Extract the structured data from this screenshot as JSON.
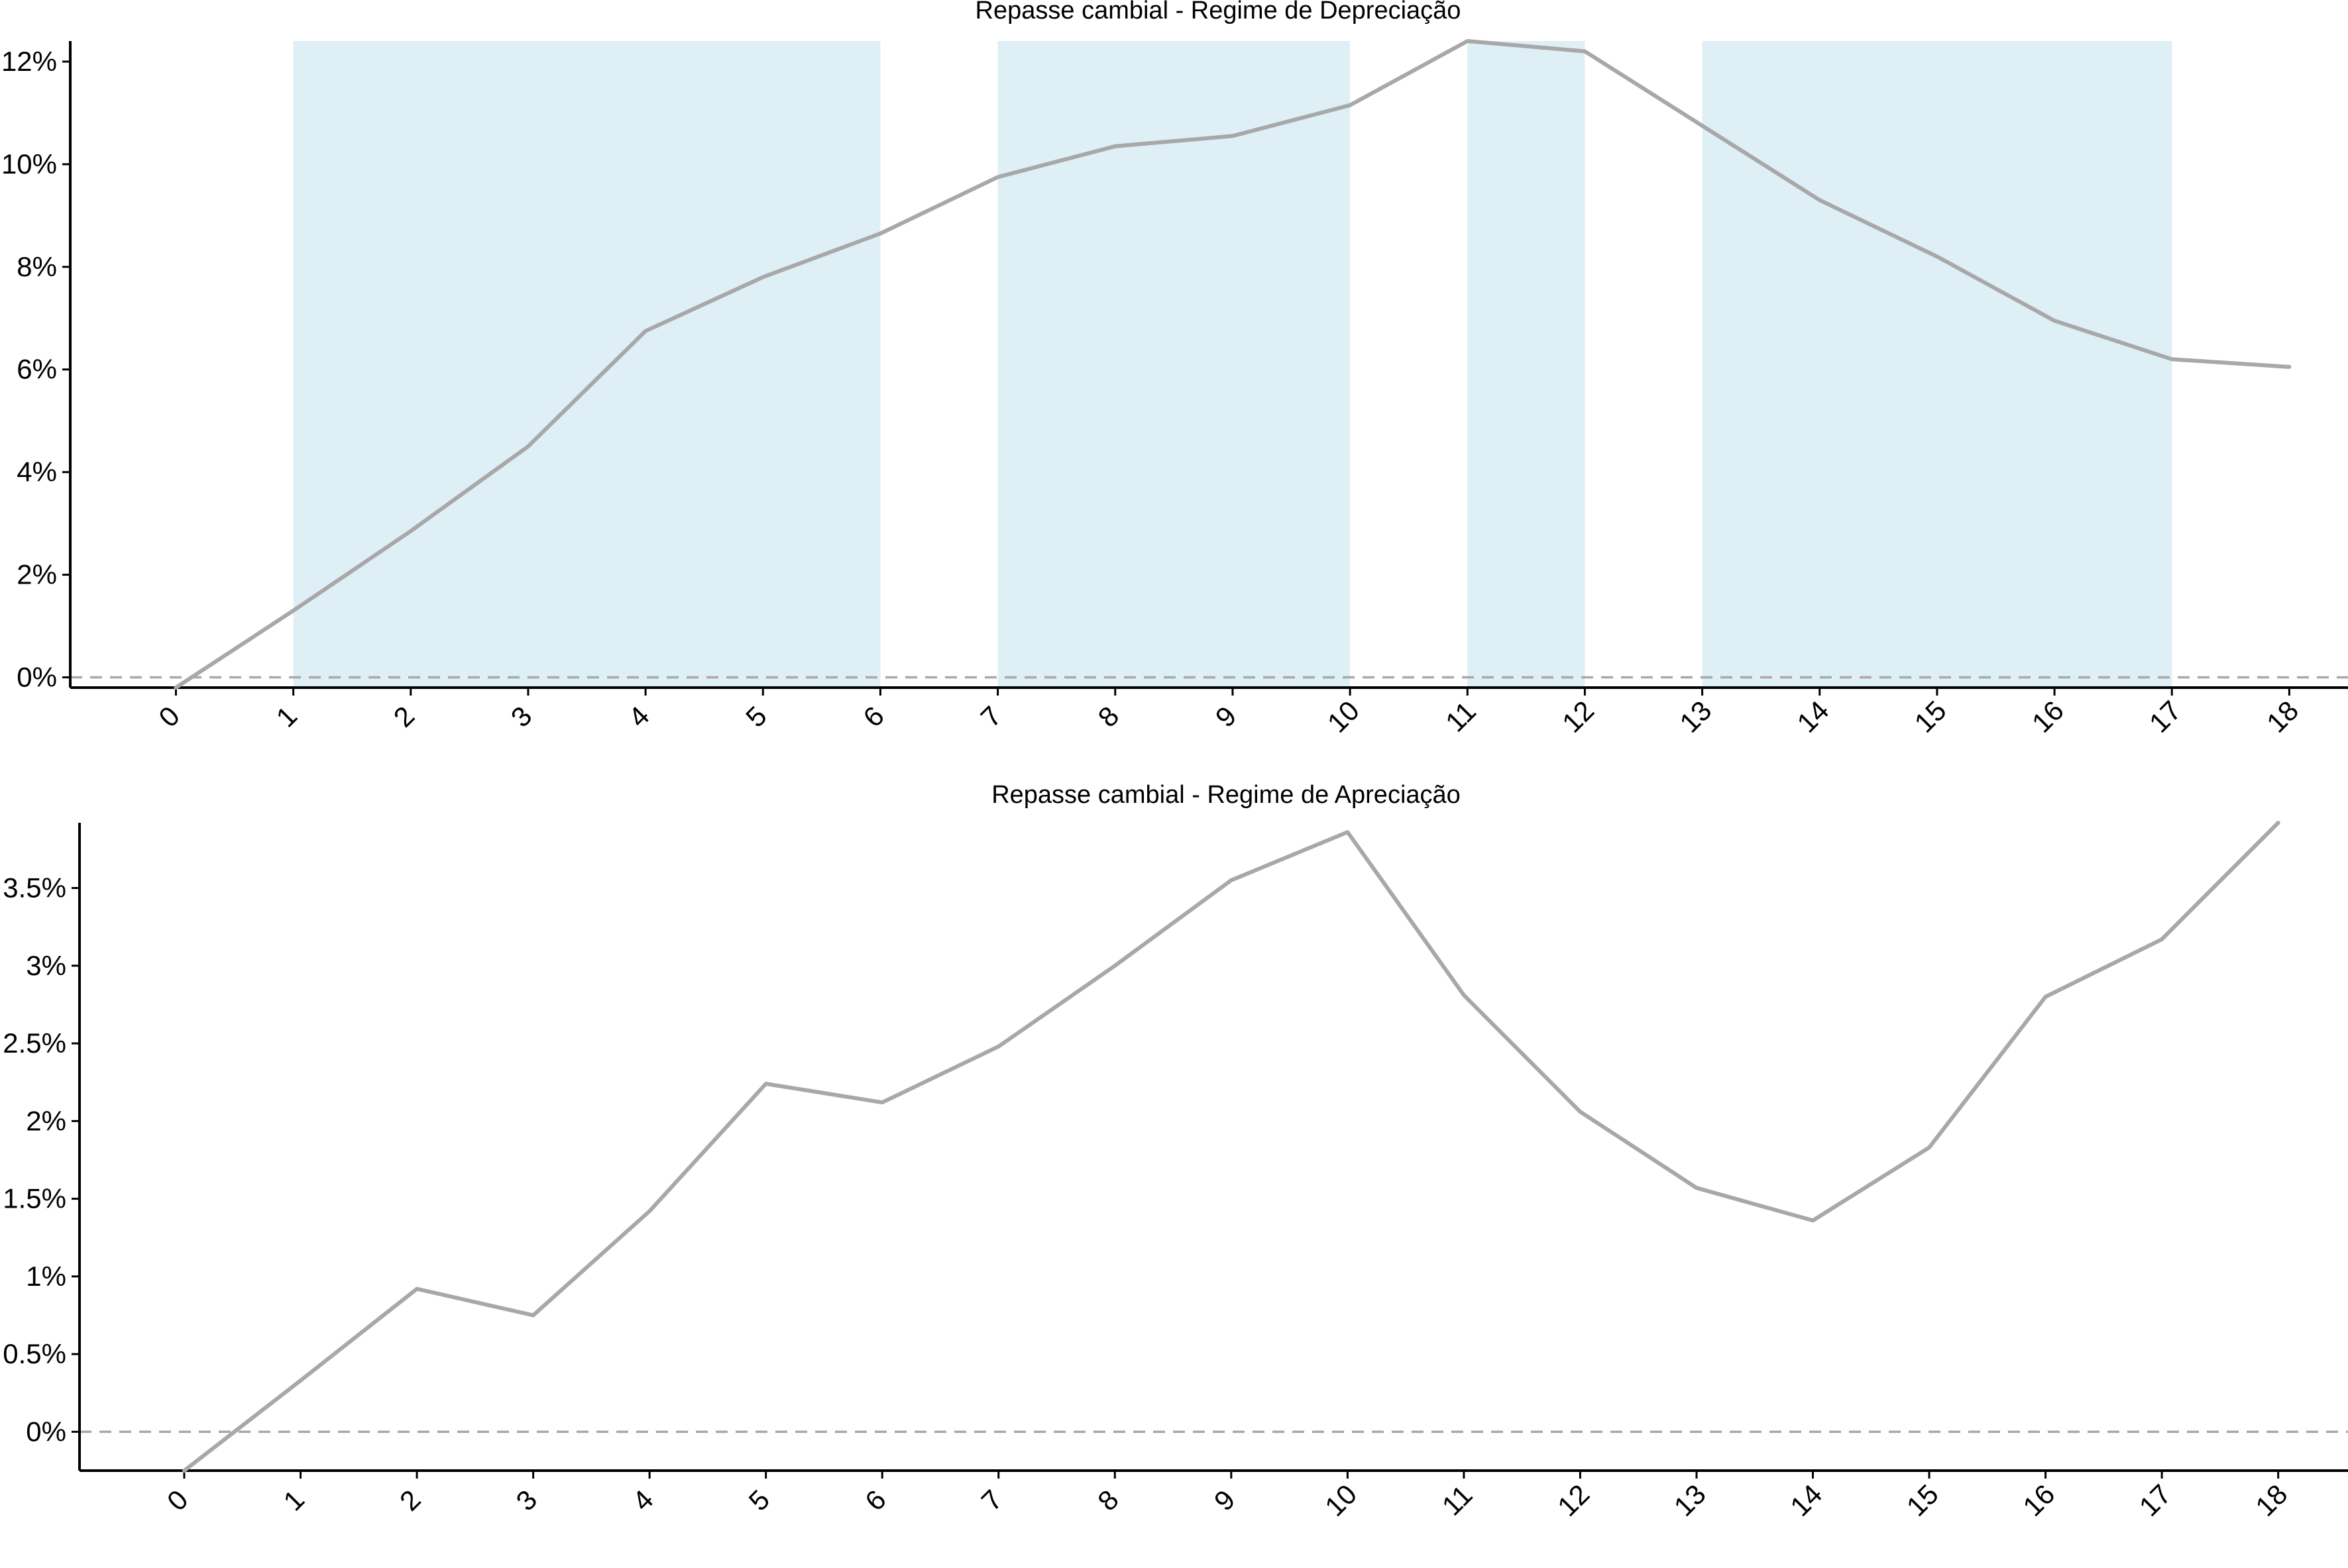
{
  "colors": {
    "line": "#a8a8a8",
    "shade": "#deeff6",
    "axis": "#000000",
    "zero_line": "#a8a8a8"
  },
  "chart_data": [
    {
      "type": "line",
      "title": "Repasse cambial -  Regime de Depreciação",
      "xlabel": "",
      "ylabel": "",
      "categories": [
        "0",
        "1",
        "2",
        "3",
        "4",
        "5",
        "6",
        "7",
        "8",
        "9",
        "10",
        "11",
        "12",
        "13",
        "14",
        "15",
        "16",
        "17",
        "18"
      ],
      "x": [
        0,
        1,
        2,
        3,
        4,
        5,
        6,
        7,
        8,
        9,
        10,
        11,
        12,
        13,
        14,
        15,
        16,
        17,
        18
      ],
      "y_ticks": [
        0,
        2,
        4,
        6,
        8,
        10,
        12
      ],
      "y_tick_labels": [
        "0%",
        "2%",
        "4%",
        "6%",
        "8%",
        "10%",
        "12%"
      ],
      "ylim": [
        -0.2,
        12.4
      ],
      "xlim": [
        -0.9,
        18.5
      ],
      "series": [
        {
          "values": [
            -0.2,
            1.3,
            2.85,
            4.5,
            6.75,
            7.8,
            8.65,
            9.75,
            10.35,
            10.55,
            11.15,
            12.4,
            12.2,
            10.75,
            9.3,
            8.2,
            6.95,
            6.2,
            6.05
          ]
        }
      ],
      "shaded_regions": [
        [
          1,
          6
        ],
        [
          7,
          10
        ],
        [
          11,
          12
        ],
        [
          13,
          17
        ]
      ],
      "reference_line": 0,
      "grid": false,
      "legend": "none"
    },
    {
      "type": "line",
      "title": "Repasse cambial -  Regime de Apreciação",
      "xlabel": "",
      "ylabel": "",
      "categories": [
        "0",
        "1",
        "2",
        "3",
        "4",
        "5",
        "6",
        "7",
        "8",
        "9",
        "10",
        "11",
        "12",
        "13",
        "14",
        "15",
        "16",
        "17",
        "18"
      ],
      "x": [
        0,
        1,
        2,
        3,
        4,
        5,
        6,
        7,
        8,
        9,
        10,
        11,
        12,
        13,
        14,
        15,
        16,
        17,
        18
      ],
      "y_ticks": [
        0,
        0.5,
        1,
        1.5,
        2,
        2.5,
        3,
        3.5
      ],
      "y_tick_labels": [
        "0%",
        "0.5%",
        "1%",
        "1.5%",
        "2%",
        "2.5%",
        "3%",
        "3.5%"
      ],
      "ylim": [
        -0.25,
        3.92
      ],
      "xlim": [
        -0.9,
        18.6
      ],
      "series": [
        {
          "values": [
            -0.25,
            0.33,
            0.92,
            0.75,
            1.42,
            2.24,
            2.12,
            2.48,
            3.0,
            3.55,
            3.86,
            2.81,
            2.06,
            1.57,
            1.36,
            1.83,
            2.8,
            3.17,
            3.92
          ]
        }
      ],
      "shaded_regions": [],
      "reference_line": 0,
      "grid": false,
      "legend": "none"
    }
  ]
}
